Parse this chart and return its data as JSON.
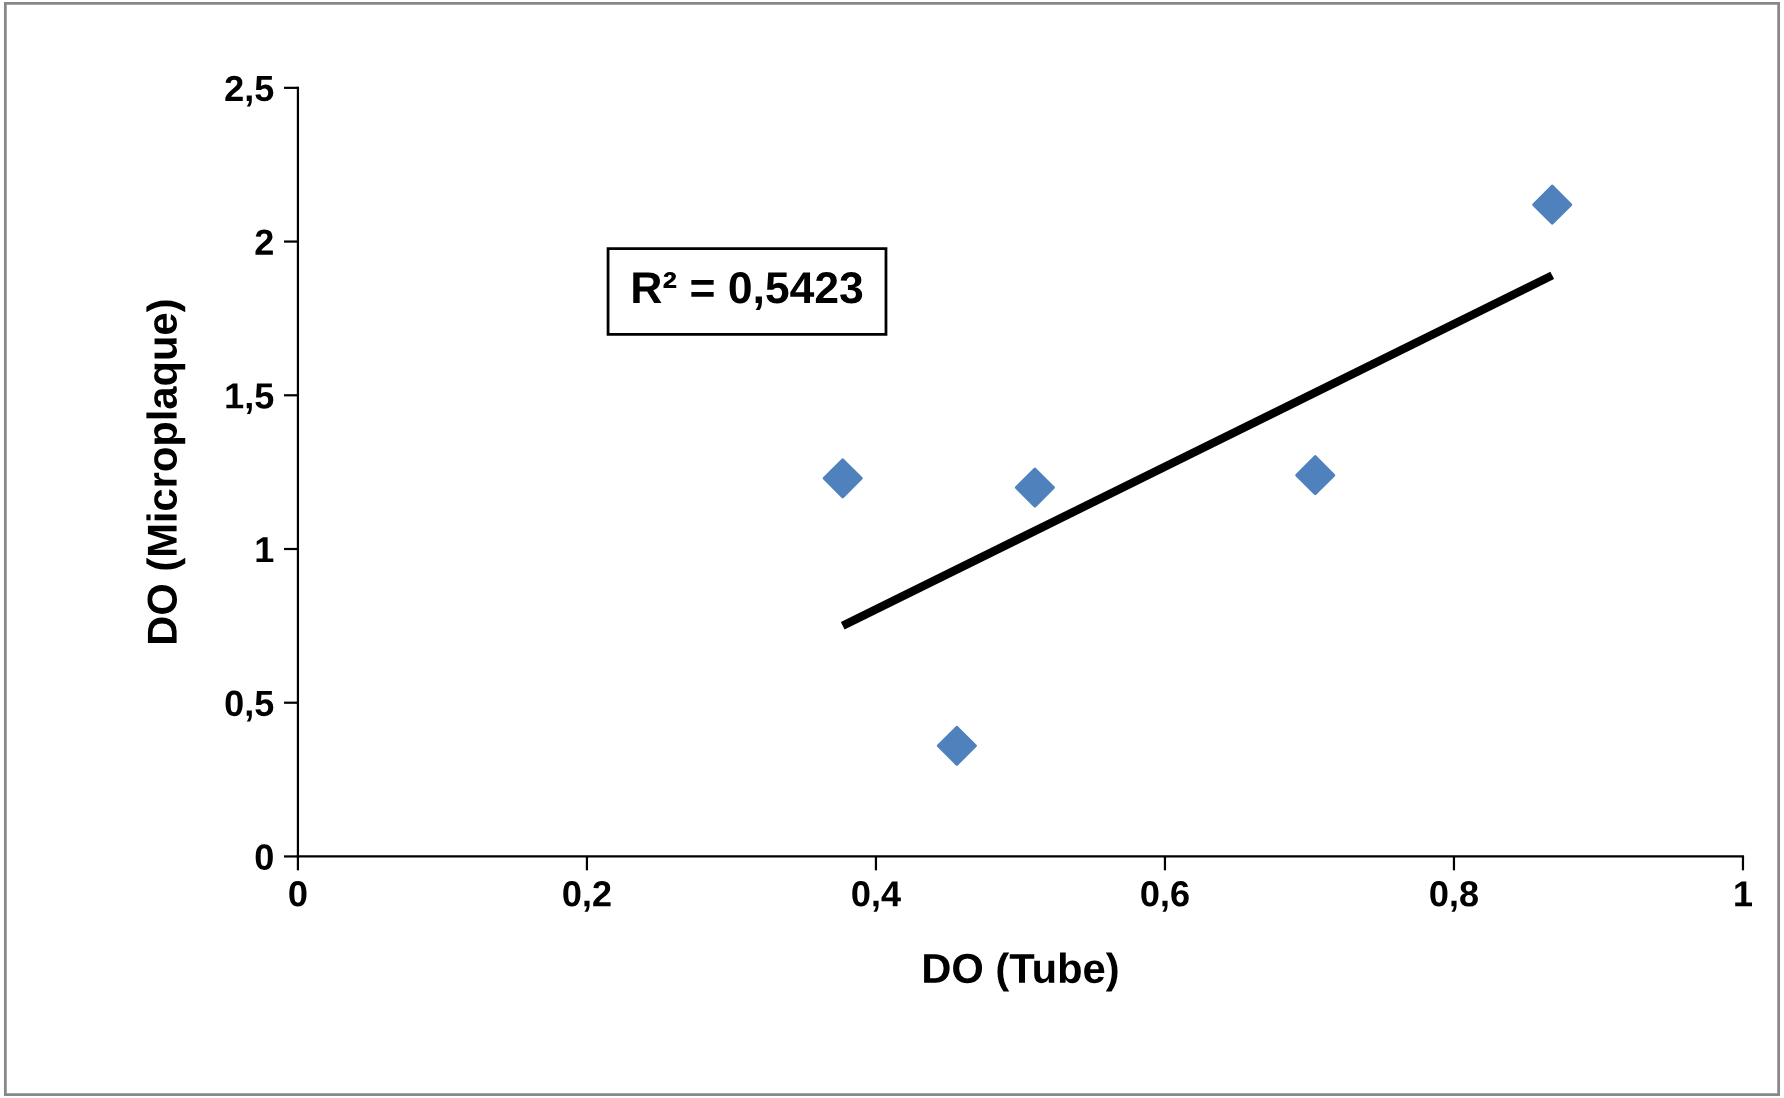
{
  "chart_data": {
    "type": "scatter",
    "xlabel": "DO (Tube)",
    "ylabel": "DO (Microplaque)",
    "annotations": [
      "R² = 0,5423"
    ],
    "xlim": [
      0,
      1
    ],
    "ylim": [
      0,
      2.5
    ],
    "xticks": [
      0,
      {
        "value": 0.2,
        "label": "0,2"
      },
      {
        "value": 0.4,
        "label": "0,4"
      },
      {
        "value": 0.6,
        "label": "0,6"
      },
      {
        "value": 0.8,
        "label": "0,8"
      },
      1
    ],
    "yticks": [
      0,
      {
        "value": 0.5,
        "label": "0,5"
      },
      1,
      {
        "value": 1.5,
        "label": "1,5"
      },
      2,
      {
        "value": 2.5,
        "label": "2,5"
      }
    ],
    "grid": false,
    "legend": false,
    "series": [
      {
        "marker": "diamond",
        "color": "#4f81bd",
        "x": [
          0.377,
          0.456,
          0.51,
          0.704,
          0.868
        ],
        "values": [
          1.23,
          0.36,
          1.2,
          1.24,
          2.12
        ]
      },
      {
        "type": "line",
        "marker": "none",
        "color": "#000000",
        "x": [
          0.377,
          0.868
        ],
        "values": [
          0.75,
          1.89
        ]
      }
    ]
  }
}
